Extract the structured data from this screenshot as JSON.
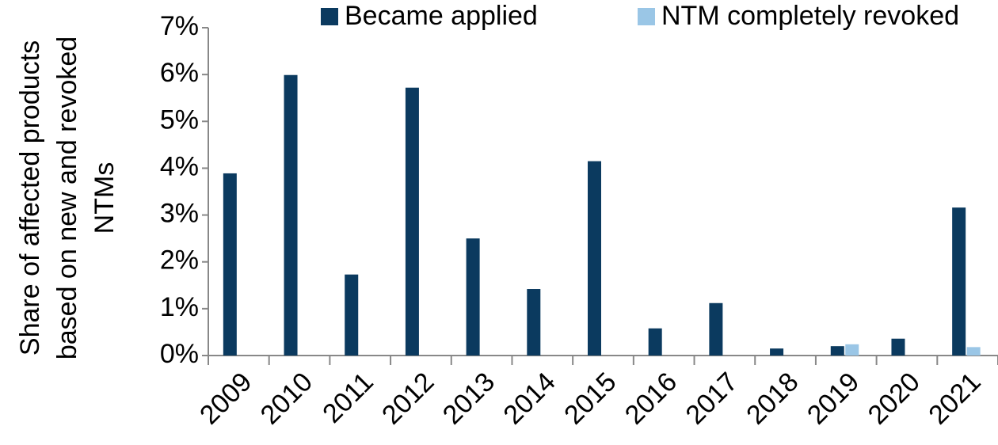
{
  "chart_data": {
    "type": "bar",
    "ylabel": [
      "Share of  affected products",
      "based on new and revoked",
      "NTMs"
    ],
    "categories": [
      "2009",
      "2010",
      "2011",
      "2012",
      "2013",
      "2014",
      "2015",
      "2016",
      "2017",
      "2018",
      "2019",
      "2020",
      "2021"
    ],
    "series": [
      {
        "name": "Became applied",
        "color": "#0b3a5f",
        "values": [
          3.89,
          5.99,
          1.73,
          5.72,
          2.5,
          1.42,
          4.15,
          0.58,
          1.12,
          0.15,
          0.2,
          0.36,
          3.16
        ]
      },
      {
        "name": "NTM completely revoked",
        "color": "#9ac6e6",
        "values": [
          null,
          null,
          null,
          null,
          null,
          null,
          null,
          null,
          null,
          null,
          0.24,
          null,
          0.18
        ]
      }
    ],
    "ylim": [
      0,
      7
    ],
    "yticks": [
      {
        "value": 0,
        "label": "0%"
      },
      {
        "value": 1,
        "label": "1%"
      },
      {
        "value": 2,
        "label": "2%"
      },
      {
        "value": 3,
        "label": "3%"
      },
      {
        "value": 4,
        "label": "4%"
      },
      {
        "value": 5,
        "label": "5%"
      },
      {
        "value": 6,
        "label": "6%"
      },
      {
        "value": 7,
        "label": "7%"
      }
    ],
    "legend": "top"
  }
}
